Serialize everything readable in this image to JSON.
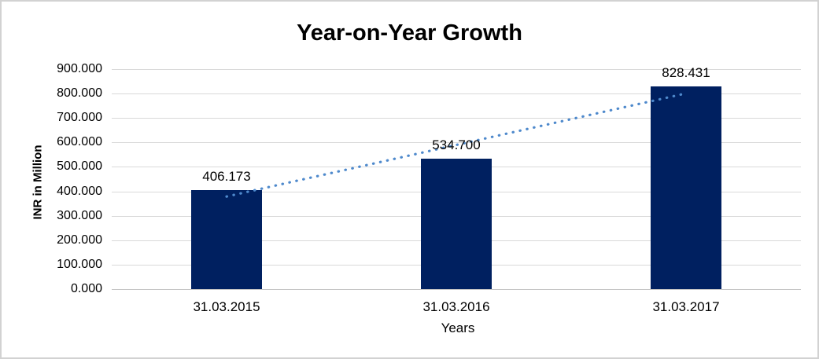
{
  "chart_data": {
    "type": "bar",
    "title": "Year-on-Year Growth",
    "xlabel": "Years",
    "ylabel": "INR in Million",
    "categories": [
      "31.03.2015",
      "31.03.2016",
      "31.03.2017"
    ],
    "values": [
      406.173,
      534.7,
      828.431
    ],
    "data_labels": [
      "406.173",
      "534.700",
      "828.431"
    ],
    "ylim": [
      0,
      900
    ],
    "ytick_step": 100,
    "ytick_labels": [
      "0.000",
      "100.000",
      "200.000",
      "300.000",
      "400.000",
      "500.000",
      "600.000",
      "700.000",
      "800.000",
      "900.000"
    ],
    "grid": true,
    "legend": "none",
    "bar_color": "#002060",
    "gridline_color": "#d9d9d9",
    "axis_line_color": "#c4c4c4",
    "text_color": "#000000",
    "trendline": {
      "kind": "linear",
      "style": "dotted",
      "color": "#4e89cc"
    }
  }
}
